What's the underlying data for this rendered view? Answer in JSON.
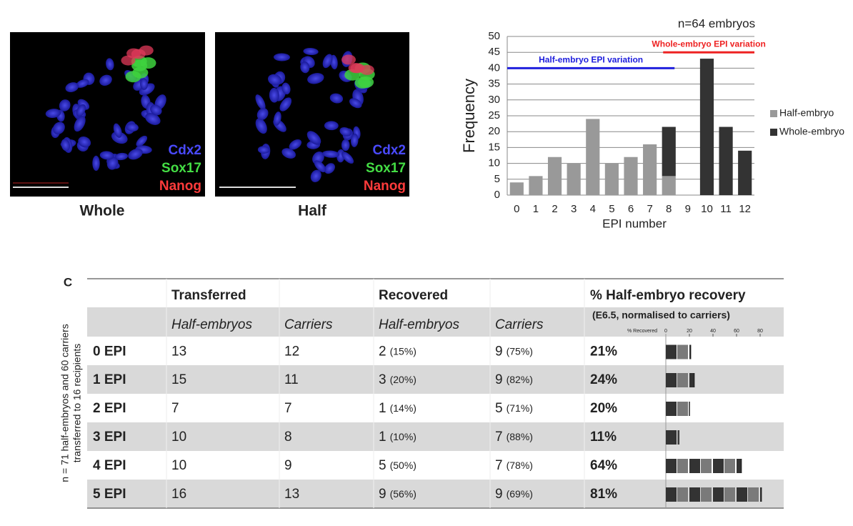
{
  "panels": [
    {
      "caption": "Whole",
      "stains": [
        "Cdx2",
        "Sox17",
        "Nanog"
      ]
    },
    {
      "caption": "Half",
      "stains": [
        "Cdx2",
        "Sox17",
        "Nanog"
      ]
    }
  ],
  "chart_data": {
    "type": "bar",
    "stacked": true,
    "annotation": "n=64 embryos",
    "x_label": "EPI number",
    "y_label": "Frequency",
    "categories": [
      "0",
      "1",
      "2",
      "3",
      "4",
      "5",
      "6",
      "7",
      "8",
      "9",
      "10",
      "11",
      "12"
    ],
    "series": [
      {
        "name": "Half-embryo",
        "color": "#999999",
        "values": [
          4,
          6,
          12,
          10,
          24,
          10,
          12,
          16,
          6,
          0,
          0,
          0,
          0
        ]
      },
      {
        "name": "Whole-embryo",
        "color": "#333333",
        "values": [
          0,
          0,
          0,
          0,
          0,
          0,
          0,
          0,
          15.5,
          0,
          43,
          21.5,
          14
        ]
      }
    ],
    "ylim": [
      0,
      50
    ],
    "yticks": [
      0,
      5,
      10,
      15,
      20,
      25,
      30,
      35,
      40,
      45,
      50
    ],
    "grid": true,
    "legend": "right",
    "ranges": [
      {
        "label": "Half-embryo EPI variation",
        "color": "#2020dd",
        "y": 40,
        "x": [
          -0.5,
          8.3
        ]
      },
      {
        "label": "Whole-embryo EPI variation",
        "color": "#ee2222",
        "y": 45,
        "x": [
          7.7,
          12.5
        ]
      }
    ]
  },
  "table": {
    "label": "C",
    "side_label": [
      "n = 71 half-embryos and 60 carriers",
      "transferred to 16 recipients"
    ],
    "header": [
      "Transferred",
      "Recovered",
      "% Half-embryo recovery"
    ],
    "subheader": [
      "Half-embryos",
      "Carriers",
      "Half-embryos",
      "Carriers",
      "(E6.5, normalised to carriers)"
    ],
    "mini_axis": {
      "label": "% Recovered",
      "xlim": [
        0,
        80
      ],
      "ticks": [
        0,
        20,
        40,
        60,
        80
      ]
    },
    "rows": [
      {
        "label": "0 EPI",
        "cells": [
          "13",
          "12"
        ],
        "recovered": [
          [
            "2",
            "(15%)"
          ],
          [
            "9",
            "(75%)"
          ]
        ],
        "recovery": {
          "value": 21,
          "label": "21%"
        }
      },
      {
        "label": "1 EPI",
        "cells": [
          "15",
          "11"
        ],
        "recovered": [
          [
            "3",
            "(20%)"
          ],
          [
            "9",
            "(82%)"
          ]
        ],
        "recovery": {
          "value": 24,
          "label": "24%"
        }
      },
      {
        "label": "2 EPI",
        "cells": [
          "7",
          "7"
        ],
        "recovered": [
          [
            "1",
            "(14%)"
          ],
          [
            "5",
            "(71%)"
          ]
        ],
        "recovery": {
          "value": 20,
          "label": "20%"
        }
      },
      {
        "label": "3 EPI",
        "cells": [
          "10",
          "8"
        ],
        "recovered": [
          [
            "1",
            "(10%)"
          ],
          [
            "7",
            "(88%)"
          ]
        ],
        "recovery": {
          "value": 11,
          "label": "11%"
        }
      },
      {
        "label": "4 EPI",
        "cells": [
          "10",
          "9"
        ],
        "recovered": [
          [
            "5",
            "(50%)"
          ],
          [
            "7",
            "(78%)"
          ]
        ],
        "recovery": {
          "value": 64,
          "label": "64%"
        }
      },
      {
        "label": "5 EPI",
        "cells": [
          "16",
          "13"
        ],
        "recovered": [
          [
            "9",
            "(56%)"
          ],
          [
            "9",
            "(69%)"
          ]
        ],
        "recovery": {
          "value": 81,
          "label": "81%"
        }
      }
    ]
  }
}
